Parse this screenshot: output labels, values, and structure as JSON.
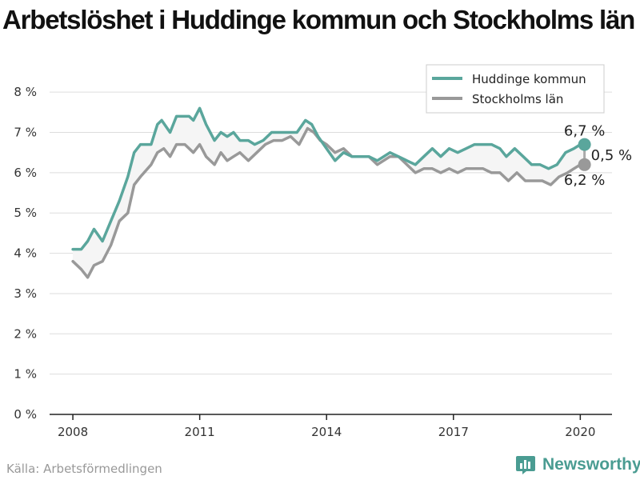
{
  "title": "Arbetslöshet i Huddinge kommun och Stockholms län",
  "source": "Källa: Arbetsförmedlingen",
  "brand": "Newsworthy",
  "chart_data": {
    "type": "line",
    "y_ticks": [
      "0 %",
      "1 %",
      "2 %",
      "3 %",
      "4 %",
      "5 %",
      "6 %",
      "7 %",
      "8 %"
    ],
    "x_ticks": [
      {
        "value": 2008,
        "label": "2008"
      },
      {
        "value": 2011,
        "label": "2011"
      },
      {
        "value": 2014,
        "label": "2014"
      },
      {
        "value": 2017,
        "label": "2017"
      },
      {
        "value": 2020,
        "label": "2020"
      }
    ],
    "xlim": [
      2007.45,
      2020.75
    ],
    "ylim": [
      0,
      8.5
    ],
    "grid": true,
    "legend_position": "top-right",
    "end_labels": {
      "series1": "6,7 %",
      "series2": "6,2 %",
      "difference": "0,5 %"
    },
    "series": [
      {
        "name": "Huddinge kommun",
        "color": "#5aa69c",
        "points": [
          [
            2008.0,
            4.1
          ],
          [
            2008.2,
            4.1
          ],
          [
            2008.35,
            4.3
          ],
          [
            2008.5,
            4.6
          ],
          [
            2008.7,
            4.3
          ],
          [
            2008.9,
            4.8
          ],
          [
            2009.1,
            5.3
          ],
          [
            2009.3,
            5.9
          ],
          [
            2009.45,
            6.5
          ],
          [
            2009.6,
            6.7
          ],
          [
            2009.85,
            6.7
          ],
          [
            2010.0,
            7.2
          ],
          [
            2010.1,
            7.3
          ],
          [
            2010.3,
            7.0
          ],
          [
            2010.45,
            7.4
          ],
          [
            2010.75,
            7.4
          ],
          [
            2010.85,
            7.3
          ],
          [
            2011.0,
            7.6
          ],
          [
            2011.15,
            7.2
          ],
          [
            2011.35,
            6.8
          ],
          [
            2011.5,
            7.0
          ],
          [
            2011.65,
            6.9
          ],
          [
            2011.8,
            7.0
          ],
          [
            2011.95,
            6.8
          ],
          [
            2012.15,
            6.8
          ],
          [
            2012.3,
            6.7
          ],
          [
            2012.5,
            6.8
          ],
          [
            2012.7,
            7.0
          ],
          [
            2012.95,
            7.0
          ],
          [
            2013.1,
            7.0
          ],
          [
            2013.3,
            7.0
          ],
          [
            2013.5,
            7.3
          ],
          [
            2013.65,
            7.2
          ],
          [
            2013.8,
            6.9
          ],
          [
            2014.0,
            6.6
          ],
          [
            2014.2,
            6.3
          ],
          [
            2014.4,
            6.5
          ],
          [
            2014.6,
            6.4
          ],
          [
            2015.0,
            6.4
          ],
          [
            2015.2,
            6.3
          ],
          [
            2015.5,
            6.5
          ],
          [
            2015.7,
            6.4
          ],
          [
            2015.9,
            6.3
          ],
          [
            2016.1,
            6.2
          ],
          [
            2016.3,
            6.4
          ],
          [
            2016.5,
            6.6
          ],
          [
            2016.7,
            6.4
          ],
          [
            2016.9,
            6.6
          ],
          [
            2017.1,
            6.5
          ],
          [
            2017.3,
            6.6
          ],
          [
            2017.5,
            6.7
          ],
          [
            2017.7,
            6.7
          ],
          [
            2017.9,
            6.7
          ],
          [
            2018.1,
            6.6
          ],
          [
            2018.25,
            6.4
          ],
          [
            2018.45,
            6.6
          ],
          [
            2018.65,
            6.4
          ],
          [
            2018.85,
            6.2
          ],
          [
            2019.05,
            6.2
          ],
          [
            2019.25,
            6.1
          ],
          [
            2019.45,
            6.2
          ],
          [
            2019.65,
            6.5
          ],
          [
            2019.85,
            6.6
          ],
          [
            2020.0,
            6.7
          ],
          [
            2020.1,
            6.7
          ]
        ]
      },
      {
        "name": "Stockholms län",
        "color": "#999999",
        "points": [
          [
            2008.0,
            3.8
          ],
          [
            2008.2,
            3.6
          ],
          [
            2008.35,
            3.4
          ],
          [
            2008.5,
            3.7
          ],
          [
            2008.7,
            3.8
          ],
          [
            2008.9,
            4.2
          ],
          [
            2009.1,
            4.8
          ],
          [
            2009.3,
            5.0
          ],
          [
            2009.45,
            5.7
          ],
          [
            2009.6,
            5.9
          ],
          [
            2009.85,
            6.2
          ],
          [
            2010.0,
            6.5
          ],
          [
            2010.15,
            6.6
          ],
          [
            2010.3,
            6.4
          ],
          [
            2010.45,
            6.7
          ],
          [
            2010.65,
            6.7
          ],
          [
            2010.85,
            6.5
          ],
          [
            2011.0,
            6.7
          ],
          [
            2011.15,
            6.4
          ],
          [
            2011.35,
            6.2
          ],
          [
            2011.5,
            6.5
          ],
          [
            2011.65,
            6.3
          ],
          [
            2011.8,
            6.4
          ],
          [
            2011.95,
            6.5
          ],
          [
            2012.15,
            6.3
          ],
          [
            2012.35,
            6.5
          ],
          [
            2012.55,
            6.7
          ],
          [
            2012.75,
            6.8
          ],
          [
            2012.95,
            6.8
          ],
          [
            2013.15,
            6.9
          ],
          [
            2013.35,
            6.7
          ],
          [
            2013.55,
            7.1
          ],
          [
            2013.7,
            7.0
          ],
          [
            2013.85,
            6.8
          ],
          [
            2014.0,
            6.7
          ],
          [
            2014.2,
            6.5
          ],
          [
            2014.4,
            6.6
          ],
          [
            2014.6,
            6.4
          ],
          [
            2015.0,
            6.4
          ],
          [
            2015.2,
            6.2
          ],
          [
            2015.5,
            6.4
          ],
          [
            2015.7,
            6.4
          ],
          [
            2015.9,
            6.2
          ],
          [
            2016.1,
            6.0
          ],
          [
            2016.3,
            6.1
          ],
          [
            2016.5,
            6.1
          ],
          [
            2016.7,
            6.0
          ],
          [
            2016.9,
            6.1
          ],
          [
            2017.1,
            6.0
          ],
          [
            2017.3,
            6.1
          ],
          [
            2017.5,
            6.1
          ],
          [
            2017.7,
            6.1
          ],
          [
            2017.9,
            6.0
          ],
          [
            2018.1,
            6.0
          ],
          [
            2018.3,
            5.8
          ],
          [
            2018.5,
            6.0
          ],
          [
            2018.7,
            5.8
          ],
          [
            2018.9,
            5.8
          ],
          [
            2019.1,
            5.8
          ],
          [
            2019.3,
            5.7
          ],
          [
            2019.5,
            5.9
          ],
          [
            2019.7,
            6.0
          ],
          [
            2019.85,
            6.1
          ],
          [
            2020.0,
            6.2
          ],
          [
            2020.1,
            6.2
          ]
        ]
      }
    ]
  }
}
